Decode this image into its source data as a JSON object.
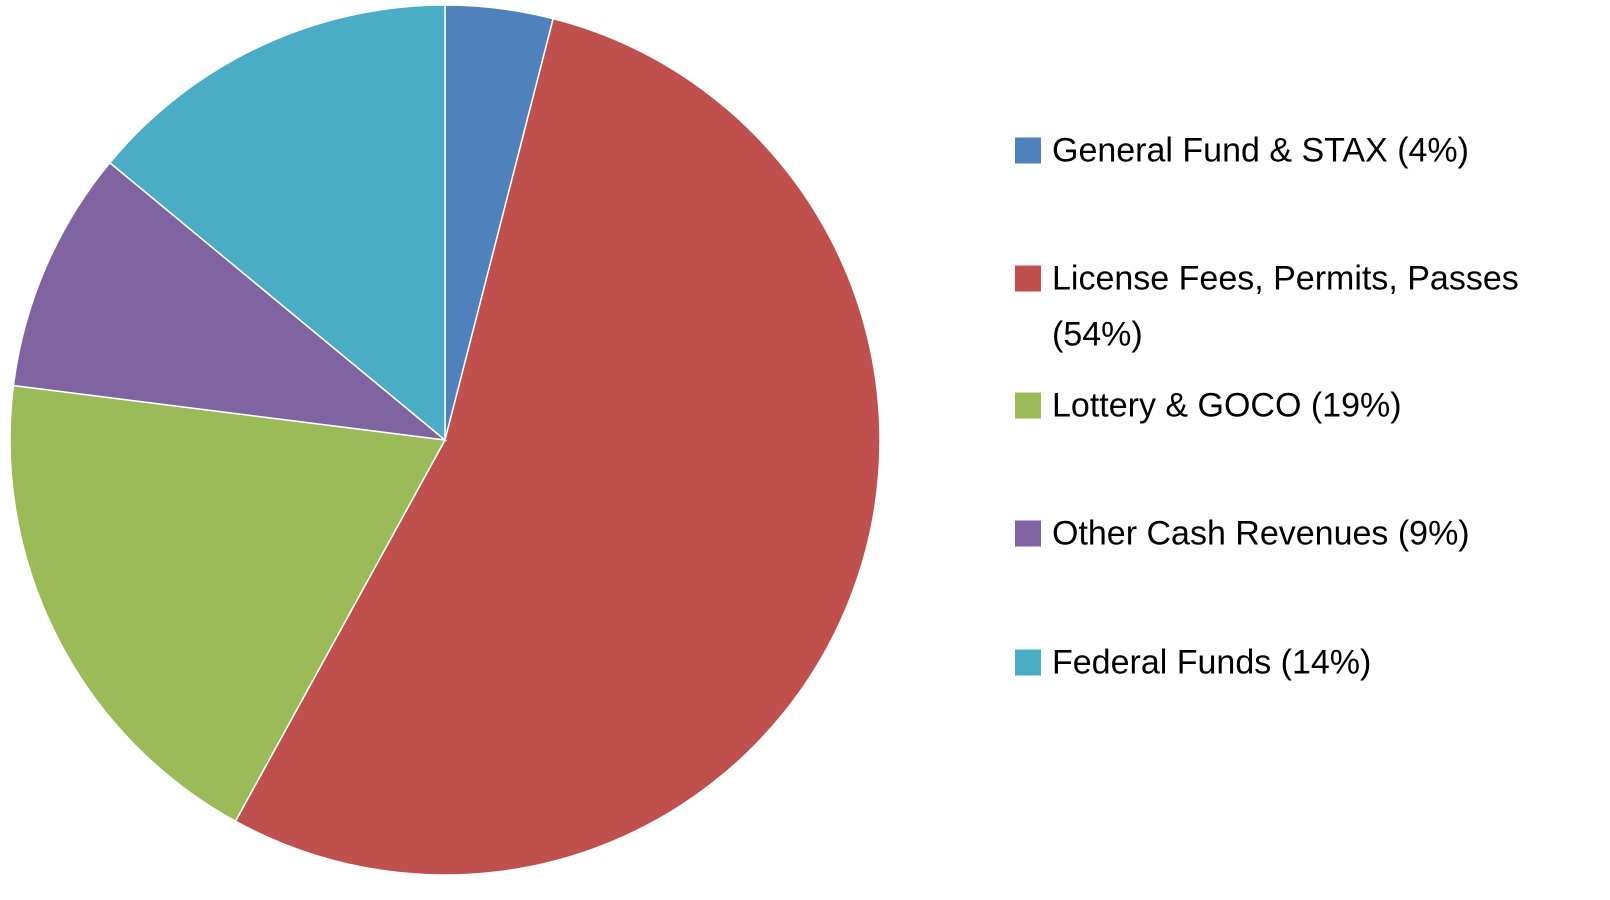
{
  "chart_data": {
    "type": "pie",
    "categories": [
      "General Fund & STAX (4%)",
      "License Fees, Permits, Passes (54%)",
      "Lottery & GOCO (19%)",
      "Other Cash Revenues (9%)",
      "Federal Funds (14%)"
    ],
    "values": [
      4,
      54,
      19,
      9,
      14
    ],
    "colors": [
      "#4f81bd",
      "#c0504d",
      "#9bbb59",
      "#8064a2",
      "#4bacc6"
    ],
    "legend": "right"
  }
}
